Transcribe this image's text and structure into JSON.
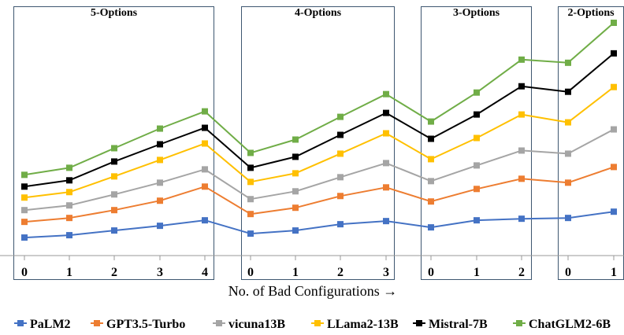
{
  "chart_data": {
    "type": "line",
    "xlabel": "No. of Bad Configurations →",
    "ylabel": "",
    "ylim": [
      0,
      300
    ],
    "grid": false,
    "legend_position": "bottom",
    "groups": [
      {
        "title": "5-Options",
        "ticks": [
          "0",
          "1",
          "2",
          "3",
          "4"
        ]
      },
      {
        "title": "4-Options",
        "ticks": [
          "0",
          "1",
          "2",
          "3"
        ]
      },
      {
        "title": "3-Options",
        "ticks": [
          "0",
          "1",
          "2"
        ]
      },
      {
        "title": "2-Options",
        "ticks": [
          "0",
          "1"
        ]
      }
    ],
    "series": [
      {
        "name": "PaLM2",
        "color": "#4472C4",
        "marker": "square",
        "values": [
          23,
          26,
          32,
          38,
          45,
          28,
          32,
          40,
          44,
          36,
          45,
          47,
          48,
          56
        ]
      },
      {
        "name": "GPT3.5-Turbo",
        "color": "#ED7D31",
        "marker": "square",
        "values": [
          43,
          48,
          58,
          70,
          88,
          53,
          61,
          76,
          87,
          69,
          85,
          98,
          93,
          113
        ]
      },
      {
        "name": "vicuna13B",
        "color": "#A5A5A5",
        "marker": "square",
        "values": [
          58,
          64,
          78,
          93,
          110,
          72,
          82,
          100,
          118,
          95,
          115,
          134,
          130,
          161
        ]
      },
      {
        "name": "LLama2-13B",
        "color": "#FFC000",
        "marker": "square",
        "values": [
          74,
          81,
          101,
          122,
          143,
          94,
          105,
          130,
          156,
          123,
          150,
          180,
          170,
          215
        ]
      },
      {
        "name": "Mistral-7B",
        "color": "#000000",
        "marker": "square",
        "values": [
          88,
          96,
          120,
          142,
          163,
          112,
          126,
          154,
          182,
          149,
          180,
          216,
          209,
          258
        ]
      },
      {
        "name": "ChatGLM2-6B",
        "color": "#70AD47",
        "marker": "square",
        "values": [
          103,
          112,
          137,
          162,
          184,
          131,
          148,
          177,
          206,
          171,
          208,
          250,
          246,
          297
        ]
      }
    ]
  }
}
